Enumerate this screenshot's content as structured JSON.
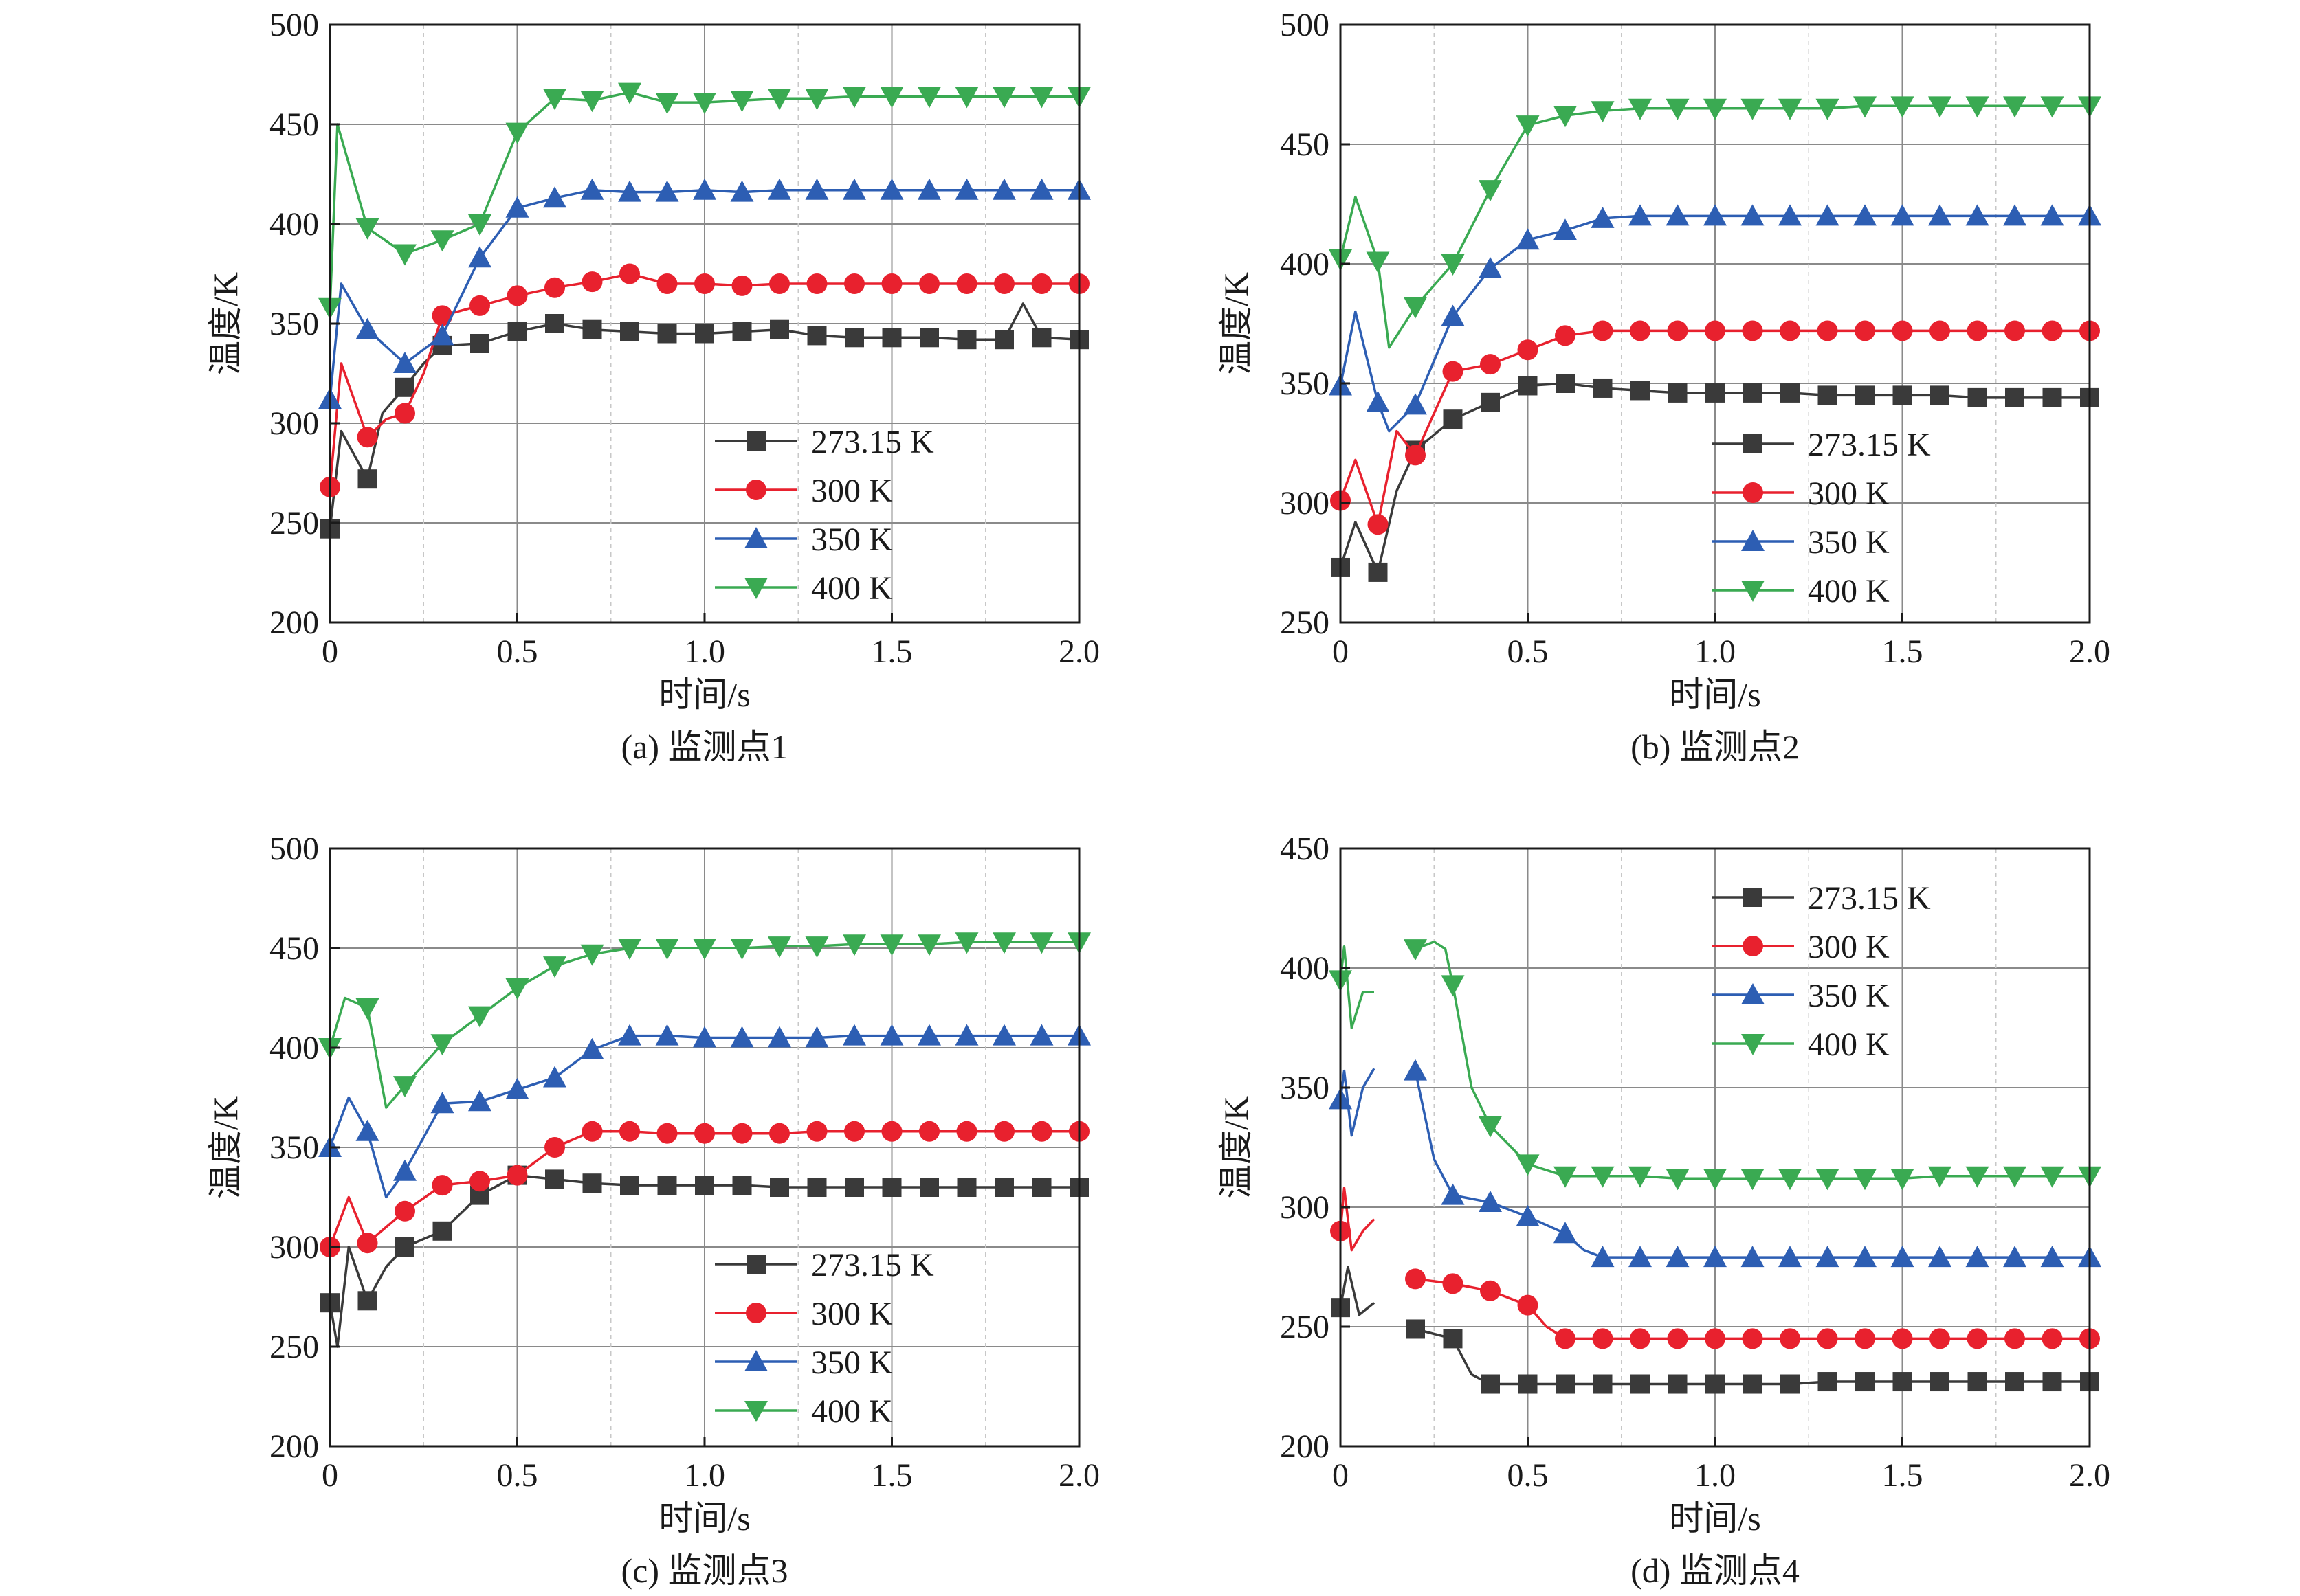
{
  "chart_data": [
    {
      "type": "line",
      "caption": "(a) 监测点1",
      "xlabel": "时间/s",
      "ylabel": "温度/K",
      "xlim": [
        0,
        2.0
      ],
      "ylim": [
        200,
        500
      ],
      "xticks": [
        0,
        0.5,
        1.0,
        1.5,
        2.0
      ],
      "xtick_labels": [
        "0",
        "0.5",
        "1.0",
        "1.5",
        "2.0"
      ],
      "yticks": [
        200,
        250,
        300,
        350,
        400,
        450,
        500
      ],
      "ytick_labels": [
        "200",
        "250",
        "300",
        "350",
        "400",
        "450",
        "500"
      ],
      "grid": true,
      "legend_position": "bottom-right",
      "series": [
        {
          "name": "273.15 K",
          "color": "#3a3a3a",
          "marker": "square",
          "x": [
            0,
            0.03,
            0.1,
            0.14,
            0.2,
            0.25,
            0.3,
            0.4,
            0.5,
            0.6,
            0.7,
            0.8,
            0.9,
            1.0,
            1.1,
            1.2,
            1.3,
            1.4,
            1.5,
            1.6,
            1.7,
            1.8,
            1.85,
            1.9,
            2.0
          ],
          "y": [
            247,
            296,
            272,
            305,
            318,
            330,
            339,
            340,
            346,
            350,
            347,
            346,
            345,
            345,
            346,
            347,
            344,
            343,
            343,
            343,
            342,
            342,
            360,
            343,
            342
          ]
        },
        {
          "name": "300 K",
          "color": "#e8212e",
          "marker": "circle",
          "x": [
            0,
            0.03,
            0.1,
            0.15,
            0.2,
            0.25,
            0.3,
            0.4,
            0.5,
            0.6,
            0.7,
            0.8,
            0.9,
            1.0,
            1.1,
            1.2,
            1.3,
            1.4,
            1.5,
            1.6,
            1.7,
            1.8,
            1.9,
            2.0
          ],
          "y": [
            268,
            330,
            293,
            302,
            305,
            325,
            354,
            359,
            364,
            368,
            371,
            375,
            370,
            370,
            369,
            370,
            370,
            370,
            370,
            370,
            370,
            370,
            370,
            370
          ]
        },
        {
          "name": "350 K",
          "color": "#2d5eb3",
          "marker": "triangle-up",
          "x": [
            0,
            0.03,
            0.1,
            0.2,
            0.3,
            0.4,
            0.5,
            0.6,
            0.7,
            0.8,
            0.9,
            1.0,
            1.1,
            1.2,
            1.3,
            1.4,
            1.5,
            1.6,
            1.7,
            1.8,
            1.9,
            2.0
          ],
          "y": [
            312,
            370,
            347,
            330,
            344,
            383,
            408,
            413,
            417,
            416,
            416,
            417,
            416,
            417,
            417,
            417,
            417,
            417,
            417,
            417,
            417,
            417
          ]
        },
        {
          "name": "400 K",
          "color": "#3aaa52",
          "marker": "triangle-down",
          "x": [
            0,
            0.02,
            0.1,
            0.2,
            0.3,
            0.4,
            0.5,
            0.6,
            0.7,
            0.8,
            0.9,
            1.0,
            1.1,
            1.2,
            1.3,
            1.4,
            1.5,
            1.6,
            1.7,
            1.8,
            1.9,
            2.0
          ],
          "y": [
            358,
            450,
            398,
            385,
            392,
            400,
            446,
            463,
            462,
            466,
            461,
            461,
            462,
            463,
            463,
            464,
            464,
            464,
            464,
            464,
            464,
            464
          ]
        }
      ]
    },
    {
      "type": "line",
      "caption": "(b) 监测点2",
      "xlabel": "时间/s",
      "ylabel": "温度/K",
      "xlim": [
        0,
        2.0
      ],
      "ylim": [
        250,
        500
      ],
      "xticks": [
        0,
        0.5,
        1.0,
        1.5,
        2.0
      ],
      "xtick_labels": [
        "0",
        "0.5",
        "1.0",
        "1.5",
        "2.0"
      ],
      "yticks": [
        250,
        300,
        350,
        400,
        450,
        500
      ],
      "ytick_labels": [
        "250",
        "300",
        "350",
        "400",
        "450",
        "500"
      ],
      "grid": true,
      "legend_position": "bottom-right",
      "series": [
        {
          "name": "273.15 K",
          "color": "#3a3a3a",
          "marker": "square",
          "x": [
            0,
            0.04,
            0.1,
            0.15,
            0.2,
            0.3,
            0.4,
            0.5,
            0.6,
            0.7,
            0.8,
            0.9,
            1.0,
            1.1,
            1.2,
            1.3,
            1.4,
            1.5,
            1.6,
            1.7,
            1.8,
            1.9,
            2.0
          ],
          "y": [
            273,
            292,
            271,
            305,
            322,
            335,
            342,
            349,
            350,
            348,
            347,
            346,
            346,
            346,
            346,
            345,
            345,
            345,
            345,
            344,
            344,
            344,
            344
          ]
        },
        {
          "name": "300 K",
          "color": "#e8212e",
          "marker": "circle",
          "x": [
            0,
            0.04,
            0.1,
            0.15,
            0.2,
            0.3,
            0.4,
            0.5,
            0.6,
            0.7,
            0.8,
            0.9,
            1.0,
            1.1,
            1.2,
            1.3,
            1.4,
            1.5,
            1.6,
            1.7,
            1.8,
            1.9,
            2.0
          ],
          "y": [
            301,
            318,
            291,
            330,
            320,
            355,
            358,
            364,
            370,
            372,
            372,
            372,
            372,
            372,
            372,
            372,
            372,
            372,
            372,
            372,
            372,
            372,
            372
          ]
        },
        {
          "name": "350 K",
          "color": "#2d5eb3",
          "marker": "triangle-up",
          "x": [
            0,
            0.04,
            0.1,
            0.13,
            0.2,
            0.3,
            0.4,
            0.5,
            0.6,
            0.7,
            0.8,
            0.9,
            1.0,
            1.1,
            1.2,
            1.3,
            1.4,
            1.5,
            1.6,
            1.7,
            1.8,
            1.9,
            2.0
          ],
          "y": [
            349,
            380,
            342,
            330,
            341,
            378,
            398,
            410,
            414,
            419,
            420,
            420,
            420,
            420,
            420,
            420,
            420,
            420,
            420,
            420,
            420,
            420,
            420
          ]
        },
        {
          "name": "400 K",
          "color": "#3aaa52",
          "marker": "triangle-down",
          "x": [
            0,
            0.04,
            0.1,
            0.13,
            0.2,
            0.3,
            0.4,
            0.5,
            0.6,
            0.7,
            0.8,
            0.9,
            1.0,
            1.1,
            1.2,
            1.3,
            1.4,
            1.5,
            1.6,
            1.7,
            1.8,
            1.9,
            2.0
          ],
          "y": [
            402,
            428,
            401,
            365,
            382,
            400,
            431,
            458,
            462,
            464,
            465,
            465,
            465,
            465,
            465,
            465,
            466,
            466,
            466,
            466,
            466,
            466,
            466
          ]
        }
      ]
    },
    {
      "type": "line",
      "caption": "(c) 监测点3",
      "xlabel": "时间/s",
      "ylabel": "温度/K",
      "xlim": [
        0,
        2.0
      ],
      "ylim": [
        200,
        500
      ],
      "xticks": [
        0,
        0.5,
        1.0,
        1.5,
        2.0
      ],
      "xtick_labels": [
        "0",
        "0.5",
        "1.0",
        "1.5",
        "2.0"
      ],
      "yticks": [
        200,
        250,
        300,
        350,
        400,
        450,
        500
      ],
      "ytick_labels": [
        "200",
        "250",
        "300",
        "350",
        "400",
        "450",
        "500"
      ],
      "grid": true,
      "legend_position": "bottom-right",
      "series": [
        {
          "name": "273.15 K",
          "color": "#3a3a3a",
          "marker": "square",
          "x": [
            0,
            0.02,
            0.05,
            0.1,
            0.15,
            0.2,
            0.3,
            0.4,
            0.5,
            0.6,
            0.7,
            0.8,
            0.9,
            1.0,
            1.1,
            1.2,
            1.3,
            1.4,
            1.5,
            1.6,
            1.7,
            1.8,
            1.9,
            2.0
          ],
          "y": [
            272,
            250,
            300,
            273,
            290,
            300,
            308,
            326,
            336,
            334,
            332,
            331,
            331,
            331,
            331,
            330,
            330,
            330,
            330,
            330,
            330,
            330,
            330,
            330
          ]
        },
        {
          "name": "300 K",
          "color": "#e8212e",
          "marker": "circle",
          "x": [
            0,
            0.05,
            0.1,
            0.15,
            0.2,
            0.3,
            0.4,
            0.5,
            0.6,
            0.7,
            0.8,
            0.9,
            1.0,
            1.1,
            1.2,
            1.3,
            1.4,
            1.5,
            1.6,
            1.7,
            1.8,
            1.9,
            2.0
          ],
          "y": [
            300,
            325,
            302,
            310,
            318,
            331,
            333,
            336,
            350,
            358,
            358,
            357,
            357,
            357,
            357,
            358,
            358,
            358,
            358,
            358,
            358,
            358,
            358
          ]
        },
        {
          "name": "350 K",
          "color": "#2d5eb3",
          "marker": "triangle-up",
          "x": [
            0,
            0.05,
            0.1,
            0.15,
            0.2,
            0.3,
            0.4,
            0.5,
            0.6,
            0.7,
            0.8,
            0.9,
            1.0,
            1.1,
            1.2,
            1.3,
            1.4,
            1.5,
            1.6,
            1.7,
            1.8,
            1.9,
            2.0
          ],
          "y": [
            350,
            375,
            358,
            325,
            338,
            372,
            373,
            379,
            385,
            399,
            406,
            406,
            405,
            405,
            405,
            405,
            406,
            406,
            406,
            406,
            406,
            406,
            406
          ]
        },
        {
          "name": "400 K",
          "color": "#3aaa52",
          "marker": "triangle-down",
          "x": [
            0,
            0.04,
            0.1,
            0.15,
            0.2,
            0.3,
            0.4,
            0.5,
            0.6,
            0.7,
            0.8,
            0.9,
            1.0,
            1.1,
            1.2,
            1.3,
            1.4,
            1.5,
            1.6,
            1.7,
            1.8,
            1.9,
            2.0
          ],
          "y": [
            400,
            425,
            420,
            370,
            381,
            402,
            416,
            430,
            441,
            447,
            450,
            450,
            450,
            450,
            451,
            451,
            452,
            452,
            452,
            453,
            453,
            453,
            453
          ]
        }
      ]
    },
    {
      "type": "line",
      "caption": "(d) 监测点4",
      "xlabel": "时间/s",
      "ylabel": "温度/K",
      "xlim": [
        0,
        2.0
      ],
      "ylim": [
        200,
        450
      ],
      "xticks": [
        0,
        0.5,
        1.0,
        1.5,
        2.0
      ],
      "xtick_labels": [
        "0",
        "0.5",
        "1.0",
        "1.5",
        "2.0"
      ],
      "yticks": [
        200,
        250,
        300,
        350,
        400,
        450
      ],
      "ytick_labels": [
        "200",
        "250",
        "300",
        "350",
        "400",
        "450"
      ],
      "grid": true,
      "legend_position": "top-right",
      "series": [
        {
          "name": "273.15 K",
          "color": "#3a3a3a",
          "marker": "square",
          "x": [
            0,
            0.02,
            0.05,
            0.09,
            null,
            0.2,
            0.3,
            0.35,
            0.4,
            0.5,
            0.6,
            0.7,
            0.8,
            0.9,
            1.0,
            1.1,
            1.2,
            1.3,
            1.4,
            1.5,
            1.6,
            1.7,
            1.8,
            1.9,
            2.0
          ],
          "y": [
            258,
            275,
            255,
            260,
            null,
            249,
            245,
            230,
            226,
            226,
            226,
            226,
            226,
            226,
            226,
            226,
            226,
            227,
            227,
            227,
            227,
            227,
            227,
            227,
            227
          ]
        },
        {
          "name": "300 K",
          "color": "#e8212e",
          "marker": "circle",
          "x": [
            0,
            0.01,
            0.03,
            0.06,
            0.09,
            null,
            0.2,
            0.3,
            0.4,
            0.5,
            0.55,
            0.6,
            0.7,
            0.8,
            0.9,
            1.0,
            1.1,
            1.2,
            1.3,
            1.4,
            1.5,
            1.6,
            1.7,
            1.8,
            1.9,
            2.0
          ],
          "y": [
            290,
            308,
            282,
            290,
            295,
            null,
            270,
            268,
            265,
            259,
            250,
            245,
            245,
            245,
            245,
            245,
            245,
            245,
            245,
            245,
            245,
            245,
            245,
            245,
            245,
            245
          ]
        },
        {
          "name": "350 K",
          "color": "#2d5eb3",
          "marker": "triangle-up",
          "x": [
            0,
            0.01,
            0.03,
            0.06,
            0.09,
            null,
            0.2,
            0.25,
            0.3,
            0.4,
            0.5,
            0.6,
            0.65,
            0.7,
            0.8,
            0.9,
            1.0,
            1.1,
            1.2,
            1.3,
            1.4,
            1.5,
            1.6,
            1.7,
            1.8,
            1.9,
            2.0
          ],
          "y": [
            345,
            357,
            330,
            350,
            358,
            null,
            357,
            320,
            305,
            302,
            296,
            289,
            282,
            279,
            279,
            279,
            279,
            279,
            279,
            279,
            279,
            279,
            279,
            279,
            279,
            279,
            279
          ]
        },
        {
          "name": "400 K",
          "color": "#3aaa52",
          "marker": "triangle-down",
          "x": [
            0,
            0.01,
            0.03,
            0.06,
            0.09,
            null,
            0.2,
            0.25,
            0.28,
            0.3,
            0.35,
            0.4,
            0.5,
            0.6,
            0.7,
            0.8,
            0.9,
            1.0,
            1.1,
            1.2,
            1.3,
            1.4,
            1.5,
            1.6,
            1.7,
            1.8,
            1.9,
            2.0
          ],
          "y": [
            395,
            409,
            375,
            390,
            390,
            null,
            408,
            411,
            408,
            393,
            350,
            334,
            318,
            313,
            313,
            313,
            312,
            312,
            312,
            312,
            312,
            312,
            312,
            313,
            313,
            313,
            313,
            313
          ]
        }
      ]
    }
  ]
}
